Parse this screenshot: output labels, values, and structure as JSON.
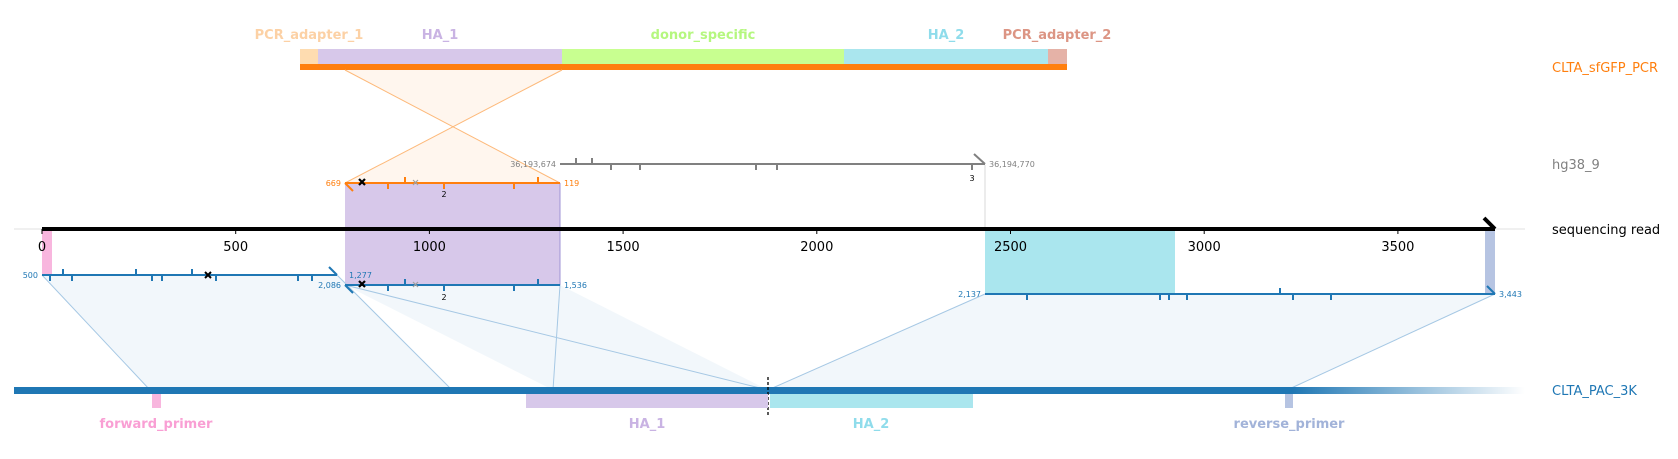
{
  "colors": {
    "orange": "#ff7f0e",
    "blue": "#1f77b4",
    "grey": "#808080",
    "black": "#000000",
    "pcr_adapter_1": "#fedcb0",
    "ha_1": "#d7c8ea",
    "donor_specific": "#c8ff90",
    "ha_2": "#aae6ee",
    "pcr_adapter_2": "#e5b2a7",
    "forward_primer": "#f8b6de",
    "reverse_primer": "#b6c4e2"
  },
  "tracks": {
    "donor": {
      "label": "CLTA_sfGFP_PCR",
      "color": "#ff7f0e"
    },
    "genome": {
      "label": "hg38_9",
      "color": "#808080"
    },
    "read": {
      "label": "sequencing read",
      "color": "#000000"
    },
    "target": {
      "label": "CLTA_PAC_3K",
      "color": "#1f77b4"
    }
  },
  "donor_features": [
    {
      "label": "PCR_adapter_1",
      "color": "#fedcb0",
      "label_color": "#fcd1a5"
    },
    {
      "label": "HA_1",
      "color": "#d7c8ea",
      "label_color": "#c9b3e3"
    },
    {
      "label": "donor_specific",
      "color": "#c8ff90",
      "label_color": "#b5f77f"
    },
    {
      "label": "HA_2",
      "color": "#aae6ee",
      "label_color": "#8fdceb"
    },
    {
      "label": "PCR_adapter_2",
      "color": "#e5b2a7",
      "label_color": "#dc9584"
    }
  ],
  "target_features": [
    {
      "label": "forward_primer",
      "color": "#f8b6de",
      "label_color": "#f99fd4"
    },
    {
      "label": "HA_1",
      "color": "#d7c8ea",
      "label_color": "#c9b3e3"
    },
    {
      "label": "HA_2",
      "color": "#aae6ee",
      "label_color": "#8fdceb"
    },
    {
      "label": "reverse_primer",
      "color": "#b6c4e2",
      "label_color": "#a2b3d9"
    }
  ],
  "read_axis": {
    "ticks": [
      "0",
      "500",
      "1000",
      "1500",
      "2000",
      "2500",
      "3000",
      "3500"
    ]
  },
  "coordinates": {
    "genome_start": "36,193,674",
    "genome_end": "36,194,770",
    "donor_left": "669",
    "donor_right": "119",
    "target_a_start": "500",
    "target_a_end": "1,277",
    "target_b_start": "2,086",
    "target_b_end": "1,536",
    "target_c_start": "2,137",
    "target_c_end": "3,443"
  },
  "annotations": {
    "donor_indel_count": "2",
    "target_indel_count": "2",
    "genome_indel_count": "3"
  }
}
